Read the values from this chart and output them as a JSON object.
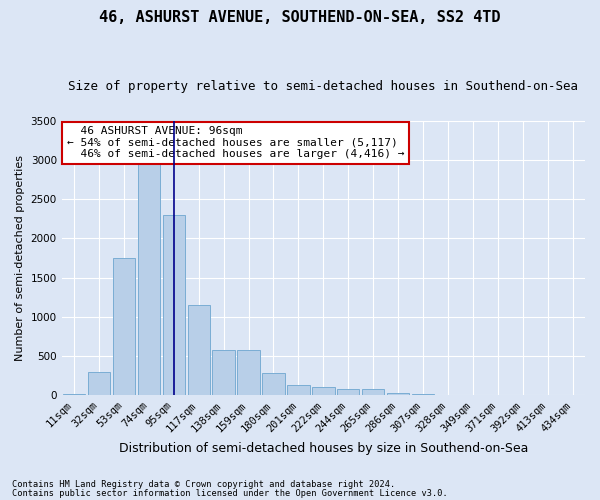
{
  "title": "46, ASHURST AVENUE, SOUTHEND-ON-SEA, SS2 4TD",
  "subtitle": "Size of property relative to semi-detached houses in Southend-on-Sea",
  "xlabel": "Distribution of semi-detached houses by size in Southend-on-Sea",
  "ylabel": "Number of semi-detached properties",
  "footnote1": "Contains HM Land Registry data © Crown copyright and database right 2024.",
  "footnote2": "Contains public sector information licensed under the Open Government Licence v3.0.",
  "bar_labels": [
    "11sqm",
    "32sqm",
    "53sqm",
    "74sqm",
    "95sqm",
    "117sqm",
    "138sqm",
    "159sqm",
    "180sqm",
    "201sqm",
    "222sqm",
    "244sqm",
    "265sqm",
    "286sqm",
    "307sqm",
    "328sqm",
    "349sqm",
    "371sqm",
    "392sqm",
    "413sqm",
    "434sqm"
  ],
  "bar_values": [
    15,
    300,
    1750,
    3050,
    2300,
    1150,
    575,
    575,
    285,
    130,
    100,
    80,
    75,
    30,
    10,
    5,
    3,
    2,
    1,
    1,
    0
  ],
  "bar_color": "#b8cfe8",
  "bar_edge_color": "#7aadd4",
  "highlight_index": 4,
  "property_label": "46 ASHURST AVENUE: 96sqm",
  "pct_smaller": 54,
  "n_smaller": 5117,
  "pct_larger": 46,
  "n_larger": 4416,
  "annotation_box_color": "#ffffff",
  "annotation_box_edge": "#cc0000",
  "vline_color": "#00008b",
  "ylim": [
    0,
    3500
  ],
  "yticks": [
    0,
    500,
    1000,
    1500,
    2000,
    2500,
    3000,
    3500
  ],
  "background_color": "#dce6f5",
  "grid_color": "#ffffff",
  "title_fontsize": 11,
  "subtitle_fontsize": 9,
  "ylabel_fontsize": 8,
  "xlabel_fontsize": 9,
  "tick_fontsize": 7.5,
  "ann_fontsize": 8
}
